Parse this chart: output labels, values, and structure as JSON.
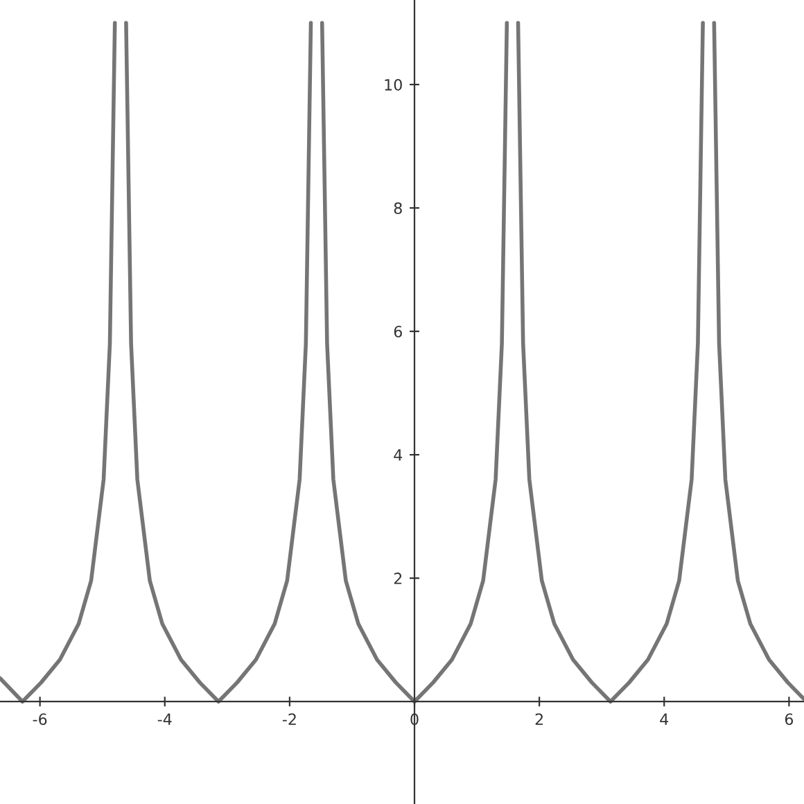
{
  "chart_data": {
    "type": "line",
    "xlim": [
      -6.64,
      6.24
    ],
    "ylim": [
      -1.66,
      11.37
    ],
    "xticks": [
      -6,
      -4,
      -2,
      0,
      2,
      4,
      6
    ],
    "yticks": [
      2,
      4,
      6,
      8,
      10
    ],
    "grid": false,
    "legend": false,
    "marker": "none",
    "line_style": "solid",
    "series": [
      {
        "color": "#757575",
        "x": [
          -6.64,
          -6.28,
          -5.98,
          -5.68,
          -5.38,
          -5.18,
          -4.98,
          -4.88,
          -4.8,
          -4.71,
          -4.62,
          -4.54,
          -4.44,
          -4.24,
          -4.04,
          -3.74,
          -3.44,
          -3.14,
          -2.84,
          -2.54,
          -2.24,
          -2.04,
          -1.84,
          -1.74,
          -1.66,
          -1.57,
          -1.48,
          -1.4,
          -1.3,
          -1.1,
          -0.9,
          -0.6,
          -0.3,
          0,
          0.3,
          0.6,
          0.9,
          1.1,
          1.3,
          1.4,
          1.48,
          1.57,
          1.66,
          1.74,
          1.84,
          2.04,
          2.24,
          2.54,
          2.84,
          3.14,
          3.44,
          3.74,
          4.04,
          4.24,
          4.44,
          4.54,
          4.62,
          4.71,
          4.8,
          4.88,
          4.98,
          5.18,
          5.38,
          5.68,
          5.98,
          6.24
        ],
        "values": [
          0.38,
          0,
          0.31,
          0.68,
          1.26,
          1.96,
          3.6,
          5.8,
          11.0,
          null,
          11.0,
          5.8,
          3.6,
          1.96,
          1.26,
          0.68,
          0.31,
          0,
          0.31,
          0.68,
          1.26,
          1.96,
          3.6,
          5.8,
          11.0,
          null,
          11.0,
          5.8,
          3.6,
          1.96,
          1.26,
          0.68,
          0.31,
          0,
          0.31,
          0.68,
          1.26,
          1.96,
          3.6,
          5.8,
          11.0,
          null,
          11.0,
          5.8,
          3.6,
          1.96,
          1.26,
          0.68,
          0.31,
          0,
          0.31,
          0.68,
          1.26,
          1.96,
          3.6,
          5.8,
          11.0,
          null,
          11.0,
          5.8,
          3.6,
          1.96,
          1.26,
          0.68,
          0.31,
          0.04
        ]
      }
    ]
  }
}
